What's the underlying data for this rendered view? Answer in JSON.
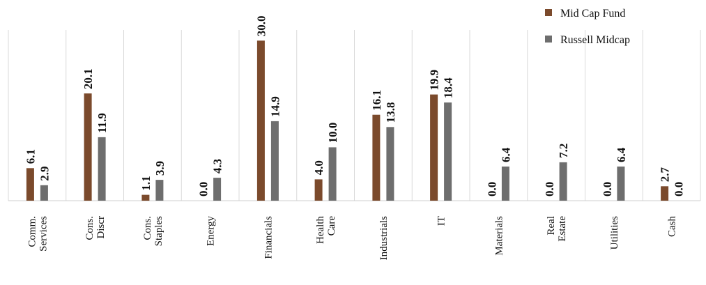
{
  "chart_data": {
    "type": "bar",
    "title": "",
    "xlabel": "",
    "ylabel": "",
    "ylim": [
      0,
      32
    ],
    "grid": "vertical category separators",
    "legend": "top-right",
    "categories": [
      [
        "Comm.",
        "Services"
      ],
      [
        "Cons.",
        "Discr"
      ],
      [
        "Cons.",
        "Staples"
      ],
      [
        "Energy"
      ],
      [
        "Financials"
      ],
      [
        "Health",
        "Care"
      ],
      [
        "Industrials"
      ],
      [
        "IT"
      ],
      [
        "Materials"
      ],
      [
        "Real",
        "Estate"
      ],
      [
        "Utilities"
      ],
      [
        "Cash"
      ]
    ],
    "series": [
      {
        "name": "Mid Cap Fund",
        "color": "#7b4a2c",
        "values": [
          6.1,
          20.1,
          1.1,
          0.0,
          30.0,
          4.0,
          16.1,
          19.9,
          0.0,
          0.0,
          0.0,
          2.7
        ],
        "labels": [
          "6.1",
          "20.1",
          "1.1",
          "0.0",
          "30.0",
          "4.0",
          "16.1",
          "19.9",
          "0.0",
          "0.0",
          "0.0",
          "2.7"
        ]
      },
      {
        "name": "Russell Midcap",
        "color": "#6e6e6e",
        "values": [
          2.9,
          11.9,
          3.9,
          4.3,
          14.9,
          10.0,
          13.8,
          18.4,
          6.4,
          7.2,
          6.4,
          0.0
        ],
        "labels": [
          "2.9",
          "11.9",
          "3.9",
          "4.3",
          "14.9",
          "10.0",
          "13.8",
          "18.4",
          "6.4",
          "7.2",
          "6.4",
          "0.0"
        ]
      }
    ]
  }
}
